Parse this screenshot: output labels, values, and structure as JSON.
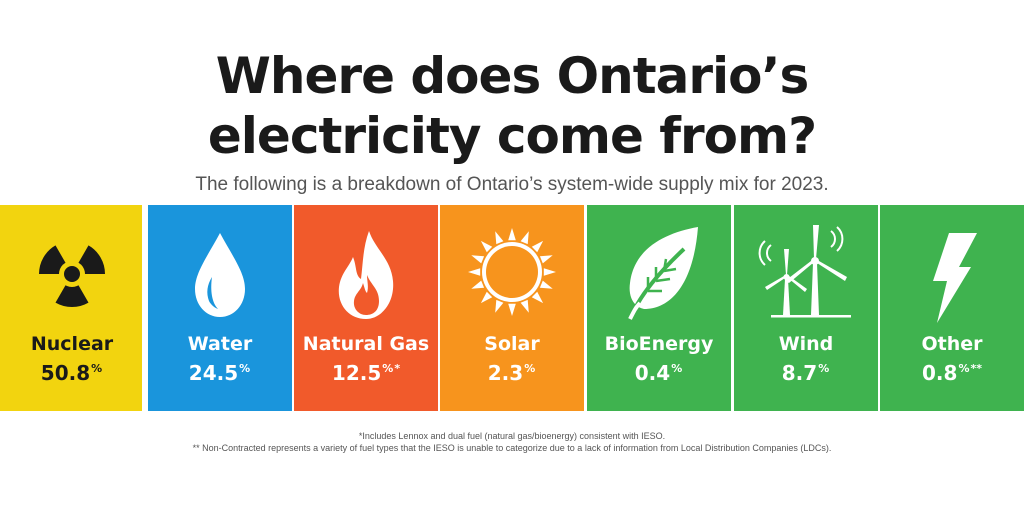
{
  "title": {
    "line1": "Where does Ontario’s",
    "line2": "electricity come from?"
  },
  "subtitle": "The following is a breakdown of Ontario’s system-wide supply mix for 2023.",
  "colors": {
    "nuclear": "#f2d40f",
    "water": "#1a95dc",
    "natural_gas": "#f15a2b",
    "solar": "#f7941d",
    "bioenergy": "#3fb34f",
    "wind": "#3fb34f",
    "other": "#3fb34f"
  },
  "sources": [
    {
      "label": "Nuclear",
      "value": "50.8",
      "unit": "%",
      "mark": "",
      "icon": "radiation-icon"
    },
    {
      "label": "Water",
      "value": "24.5",
      "unit": "%",
      "mark": "",
      "icon": "water-drop-icon"
    },
    {
      "label": "Natural Gas",
      "value": "12.5",
      "unit": "%",
      "mark": "*",
      "icon": "flame-icon"
    },
    {
      "label": "Solar",
      "value": "2.3",
      "unit": "%",
      "mark": "",
      "icon": "sun-icon"
    },
    {
      "label": "BioEnergy",
      "value": "0.4",
      "unit": "%",
      "mark": "",
      "icon": "leaf-icon"
    },
    {
      "label": "Wind",
      "value": "8.7",
      "unit": "%",
      "mark": "",
      "icon": "wind-turbine-icon"
    },
    {
      "label": "Other",
      "value": "0.8",
      "unit": "%",
      "mark": "**",
      "icon": "lightning-icon"
    }
  ],
  "footnotes": {
    "f1": "*Includes Lennox and dual fuel (natural gas/bioenergy) consistent with IESO.",
    "f2": "** Non-Contracted represents a variety of fuel types that the IESO is unable to categorize due to a lack of information from Local Distribution Companies (LDCs)."
  }
}
